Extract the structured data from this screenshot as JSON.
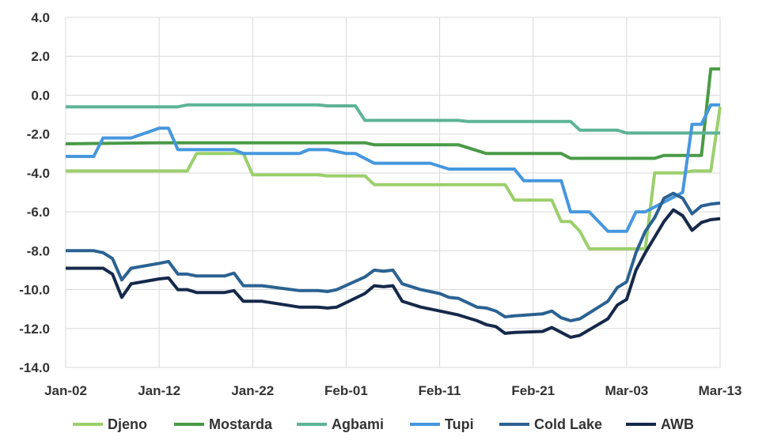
{
  "chart_data": {
    "type": "line",
    "title": "",
    "xlabel": "",
    "ylabel": "",
    "ylim": [
      -14,
      4
    ],
    "yticks": [
      -14,
      -12,
      -10,
      -8,
      -6,
      -4,
      -2,
      0,
      2,
      4
    ],
    "ytick_labels": [
      "-14.0",
      "-12.0",
      "-10.0",
      "-8.0",
      "-6.0",
      "-4.0",
      "-2.0",
      "0.0",
      "2.0",
      "4.0"
    ],
    "xlim": [
      0,
      70
    ],
    "xticks": [
      0,
      10,
      20,
      30,
      40,
      50,
      60,
      70
    ],
    "xtick_labels": [
      "Jan-02",
      "Jan-12",
      "Jan-22",
      "Feb-01",
      "Feb-11",
      "Feb-21",
      "Mar-03",
      "Mar-13"
    ],
    "grid": true,
    "legend_position": "bottom",
    "series": [
      {
        "name": "Djeno",
        "color": "#9BCF6B",
        "points": [
          [
            0,
            -3.9
          ],
          [
            13,
            -3.9
          ],
          [
            14,
            -3.0
          ],
          [
            19,
            -3.0
          ],
          [
            20,
            -4.1
          ],
          [
            27,
            -4.1
          ],
          [
            28,
            -4.15
          ],
          [
            32,
            -4.15
          ],
          [
            33,
            -4.6
          ],
          [
            47,
            -4.6
          ],
          [
            48,
            -5.4
          ],
          [
            52,
            -5.4
          ],
          [
            53,
            -6.5
          ],
          [
            54,
            -6.5
          ],
          [
            55,
            -7.0
          ],
          [
            56,
            -7.9
          ],
          [
            62,
            -7.9
          ],
          [
            63,
            -4.0
          ],
          [
            66,
            -4.0
          ],
          [
            67,
            -3.9
          ],
          [
            69,
            -3.9
          ],
          [
            70,
            -0.6
          ]
        ]
      },
      {
        "name": "Mostarda",
        "color": "#4A9A47",
        "points": [
          [
            0,
            -2.5
          ],
          [
            10,
            -2.45
          ],
          [
            22,
            -2.45
          ],
          [
            32,
            -2.45
          ],
          [
            33,
            -2.55
          ],
          [
            42,
            -2.55
          ],
          [
            45,
            -3.0
          ],
          [
            53,
            -3.0
          ],
          [
            54,
            -3.25
          ],
          [
            63,
            -3.25
          ],
          [
            64,
            -3.1
          ],
          [
            68,
            -3.1
          ],
          [
            69,
            1.35
          ],
          [
            70,
            1.35
          ]
        ]
      },
      {
        "name": "Agbami",
        "color": "#5DB397",
        "points": [
          [
            0,
            -0.6
          ],
          [
            12,
            -0.6
          ],
          [
            13,
            -0.5
          ],
          [
            27,
            -0.5
          ],
          [
            28,
            -0.55
          ],
          [
            31,
            -0.55
          ],
          [
            32,
            -1.3
          ],
          [
            42,
            -1.3
          ],
          [
            43,
            -1.35
          ],
          [
            54,
            -1.35
          ],
          [
            55,
            -1.8
          ],
          [
            59,
            -1.8
          ],
          [
            60,
            -1.95
          ],
          [
            70,
            -1.95
          ]
        ]
      },
      {
        "name": "Tupi",
        "color": "#4697DE",
        "points": [
          [
            0,
            -3.15
          ],
          [
            3,
            -3.15
          ],
          [
            4,
            -2.2
          ],
          [
            7,
            -2.2
          ],
          [
            10,
            -1.7
          ],
          [
            11,
            -1.7
          ],
          [
            12,
            -2.8
          ],
          [
            18,
            -2.8
          ],
          [
            19,
            -3.0
          ],
          [
            25,
            -3.0
          ],
          [
            26,
            -2.8
          ],
          [
            28,
            -2.8
          ],
          [
            30,
            -3.0
          ],
          [
            31,
            -3.0
          ],
          [
            33,
            -3.5
          ],
          [
            39,
            -3.5
          ],
          [
            41,
            -3.8
          ],
          [
            48,
            -3.8
          ],
          [
            49,
            -4.4
          ],
          [
            53,
            -4.4
          ],
          [
            54,
            -6.0
          ],
          [
            56,
            -6.0
          ],
          [
            58,
            -7.0
          ],
          [
            60,
            -7.0
          ],
          [
            61,
            -6.0
          ],
          [
            62,
            -6.0
          ],
          [
            66,
            -5.0
          ],
          [
            67,
            -1.5
          ],
          [
            68,
            -1.5
          ],
          [
            69,
            -0.5
          ],
          [
            70,
            -0.5
          ]
        ]
      },
      {
        "name": "Cold Lake",
        "color": "#2B6292",
        "points": [
          [
            0,
            -8.0
          ],
          [
            3,
            -8.0
          ],
          [
            4,
            -8.1
          ],
          [
            5,
            -8.4
          ],
          [
            6,
            -9.5
          ],
          [
            7,
            -8.9
          ],
          [
            10,
            -8.65
          ],
          [
            11,
            -8.55
          ],
          [
            12,
            -9.2
          ],
          [
            13,
            -9.2
          ],
          [
            14,
            -9.3
          ],
          [
            17,
            -9.3
          ],
          [
            18,
            -9.15
          ],
          [
            19,
            -9.8
          ],
          [
            21,
            -9.8
          ],
          [
            25,
            -10.05
          ],
          [
            27,
            -10.05
          ],
          [
            28,
            -10.1
          ],
          [
            29,
            -10.0
          ],
          [
            32,
            -9.35
          ],
          [
            33,
            -9.0
          ],
          [
            34,
            -9.05
          ],
          [
            35,
            -9.0
          ],
          [
            36,
            -9.7
          ],
          [
            38,
            -10.0
          ],
          [
            40,
            -10.2
          ],
          [
            41,
            -10.4
          ],
          [
            42,
            -10.45
          ],
          [
            44,
            -10.9
          ],
          [
            45,
            -10.95
          ],
          [
            46,
            -11.1
          ],
          [
            47,
            -11.4
          ],
          [
            48,
            -11.35
          ],
          [
            51,
            -11.25
          ],
          [
            52,
            -11.1
          ],
          [
            53,
            -11.45
          ],
          [
            54,
            -11.6
          ],
          [
            55,
            -11.5
          ],
          [
            58,
            -10.6
          ],
          [
            59,
            -9.9
          ],
          [
            60,
            -9.6
          ],
          [
            61,
            -8.1
          ],
          [
            62,
            -7.0
          ],
          [
            63,
            -6.3
          ],
          [
            64,
            -5.3
          ],
          [
            65,
            -5.05
          ],
          [
            66,
            -5.3
          ],
          [
            67,
            -6.1
          ],
          [
            68,
            -5.7
          ],
          [
            69,
            -5.6
          ],
          [
            70,
            -5.55
          ]
        ]
      },
      {
        "name": "AWB",
        "color": "#15294A",
        "points": [
          [
            0,
            -8.9
          ],
          [
            4,
            -8.9
          ],
          [
            5,
            -9.2
          ],
          [
            6,
            -10.4
          ],
          [
            7,
            -9.7
          ],
          [
            10,
            -9.45
          ],
          [
            11,
            -9.4
          ],
          [
            12,
            -10.0
          ],
          [
            13,
            -10.0
          ],
          [
            14,
            -10.15
          ],
          [
            17,
            -10.15
          ],
          [
            18,
            -10.05
          ],
          [
            19,
            -10.6
          ],
          [
            21,
            -10.6
          ],
          [
            25,
            -10.9
          ],
          [
            27,
            -10.9
          ],
          [
            28,
            -10.95
          ],
          [
            29,
            -10.9
          ],
          [
            32,
            -10.2
          ],
          [
            33,
            -9.8
          ],
          [
            34,
            -9.85
          ],
          [
            35,
            -9.8
          ],
          [
            36,
            -10.6
          ],
          [
            38,
            -10.9
          ],
          [
            40,
            -11.1
          ],
          [
            41,
            -11.2
          ],
          [
            42,
            -11.3
          ],
          [
            44,
            -11.6
          ],
          [
            45,
            -11.8
          ],
          [
            46,
            -11.9
          ],
          [
            47,
            -12.25
          ],
          [
            48,
            -12.2
          ],
          [
            51,
            -12.15
          ],
          [
            52,
            -11.95
          ],
          [
            53,
            -12.2
          ],
          [
            54,
            -12.45
          ],
          [
            55,
            -12.35
          ],
          [
            58,
            -11.5
          ],
          [
            59,
            -10.8
          ],
          [
            60,
            -10.5
          ],
          [
            61,
            -9.0
          ],
          [
            62,
            -8.1
          ],
          [
            63,
            -7.3
          ],
          [
            64,
            -6.5
          ],
          [
            65,
            -5.9
          ],
          [
            66,
            -6.2
          ],
          [
            67,
            -6.95
          ],
          [
            68,
            -6.55
          ],
          [
            69,
            -6.4
          ],
          [
            70,
            -6.35
          ]
        ]
      }
    ]
  }
}
